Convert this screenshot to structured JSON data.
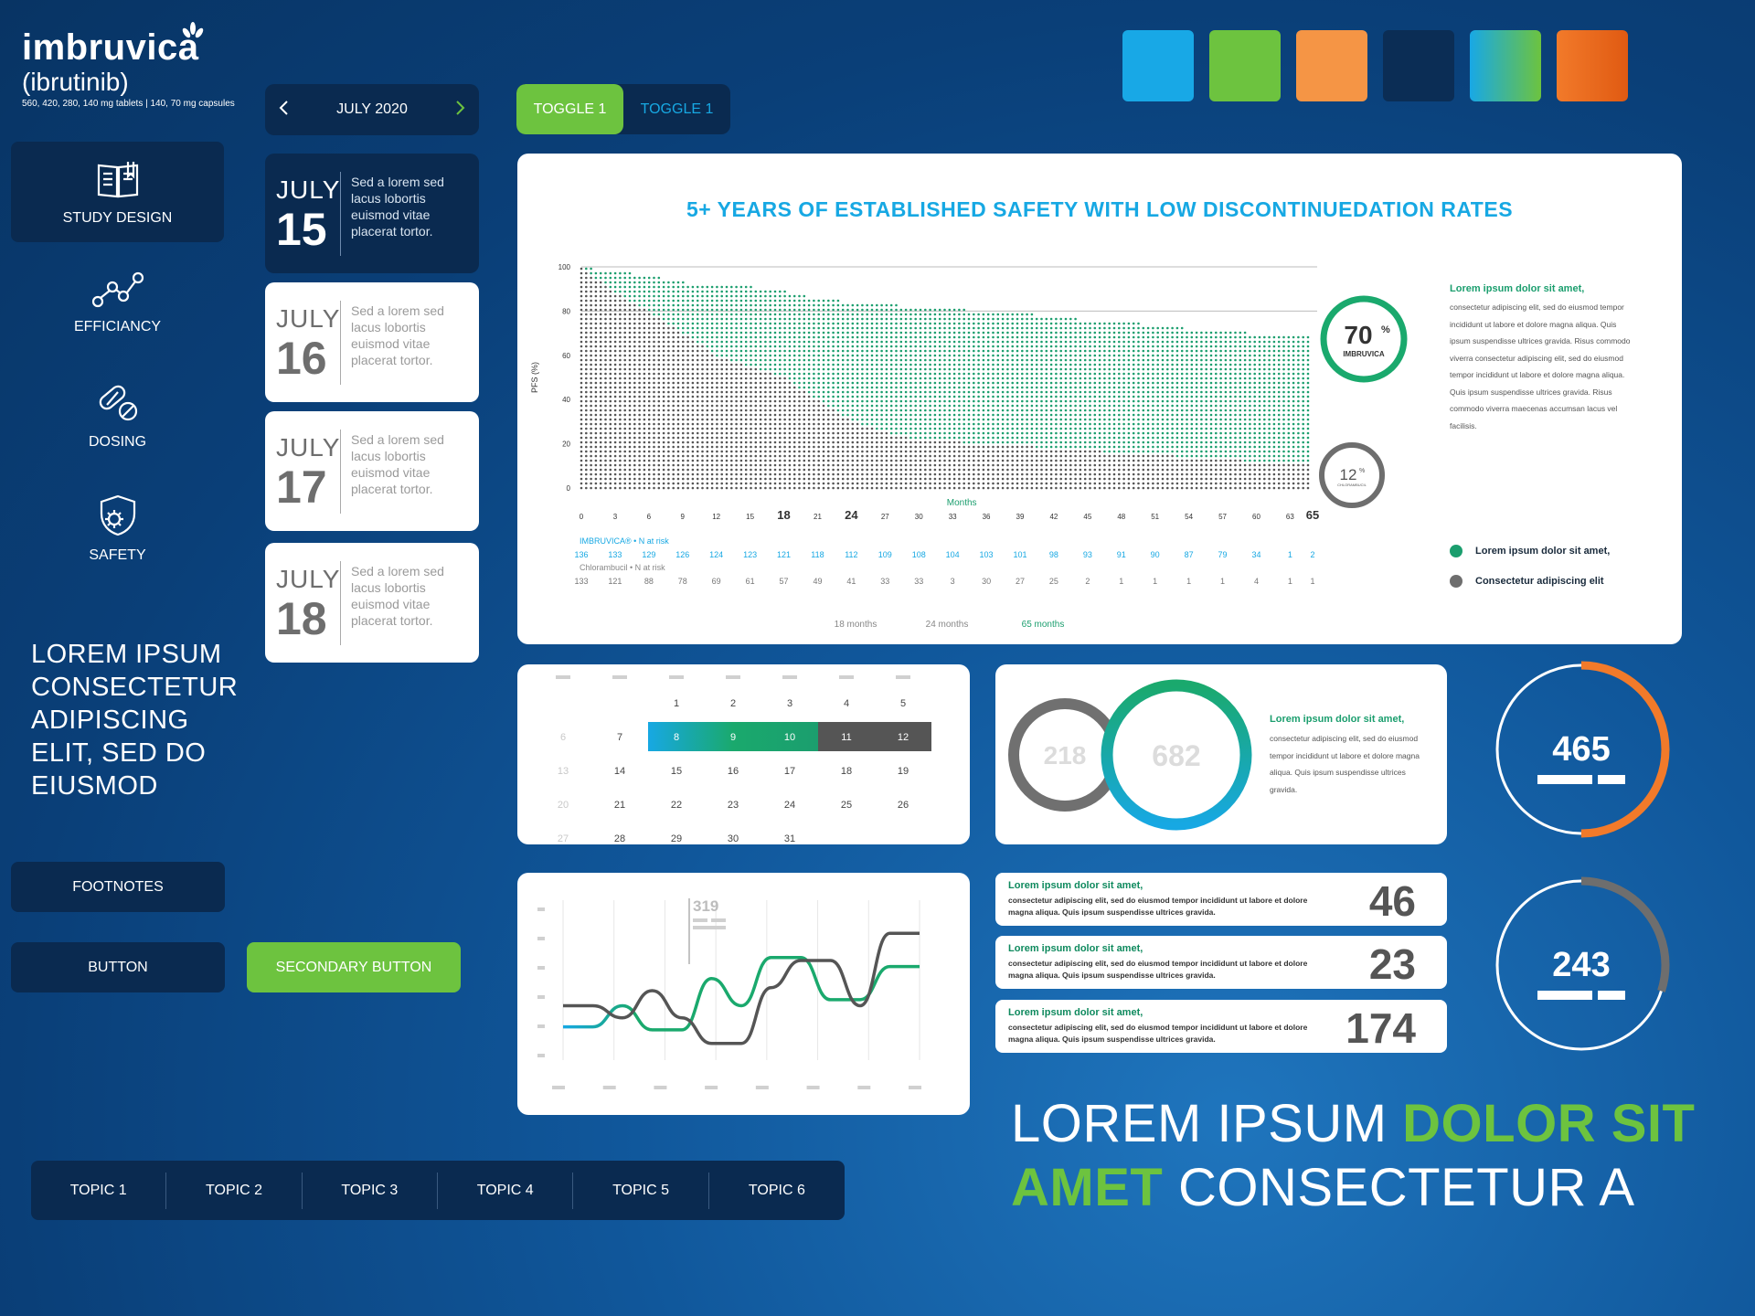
{
  "logo": {
    "name": "imbruvica",
    "generic": "(ibrutinib)",
    "fine_print": "560, 420, 280, 140 mg tablets | 140, 70 mg capsules"
  },
  "sidebar": {
    "items": [
      {
        "label": "STUDY DESIGN",
        "icon": "book-icon",
        "active": true
      },
      {
        "label": "EFFICIANCY",
        "icon": "line-chart-icon",
        "active": false
      },
      {
        "label": "DOSING",
        "icon": "pill-icon",
        "active": false
      },
      {
        "label": "SAFETY",
        "icon": "shield-icon",
        "active": false
      }
    ],
    "lorem": "LOREM IPSUM CONSECTETUR ADIPISCING ELIT, SED DO EIUSMOD"
  },
  "buttons": {
    "footnotes": "FOOTNOTES",
    "button": "BUTTON",
    "secondary": "SECONDARY  BUTTON"
  },
  "date_nav": {
    "label": "JULY 2020"
  },
  "day_cards": [
    {
      "month": "JULY",
      "day": "15",
      "text": "Sed a lorem sed lacus lobortis euismod vitae placerat tortor.",
      "active": true
    },
    {
      "month": "JULY",
      "day": "16",
      "text": "Sed a lorem sed lacus lobortis euismod vitae placerat tortor.",
      "active": false
    },
    {
      "month": "JULY",
      "day": "17",
      "text": "Sed a lorem sed lacus lobortis euismod vitae placerat tortor.",
      "active": false
    },
    {
      "month": "JULY",
      "day": "18",
      "text": "Sed a lorem sed lacus lobortis euismod vitae placerat tortor.",
      "active": false
    }
  ],
  "toggles": {
    "left": "TOGGLE 1",
    "right": "TOGGLE 1"
  },
  "colors": {
    "swatches": [
      "#18a8e6",
      "#6dc33f",
      "#f59545",
      "#0b2d55",
      "linear-gradient(90deg,#18a8e6,#6dc33f)",
      "linear-gradient(90deg,#f27a2a,#e05a12)"
    ],
    "green": "#6dc33f",
    "teal": "#1b9e6e",
    "blue": "#17a8e3",
    "navy": "#0a2a50",
    "orange": "#f27a2a",
    "gray": "#6e6e6e"
  },
  "main_chart": {
    "title": "5+ YEARS OF ESTABLISHED SAFETY WITH LOW DISCONTINUEDATION RATES",
    "ylabel": "PFS (%)",
    "xlabel": "Months",
    "badge_imbruvica": {
      "value": "70",
      "unit": "%",
      "label": "IMBRUVICA"
    },
    "badge_chlor": {
      "value": "12",
      "unit": "%",
      "label": "CHLORAMBUCIL"
    },
    "side_title": "Lorem ipsum dolor sit amet,",
    "side_text": "consectetur adipiscing elit, sed do eiusmod tempor incididunt ut labore et dolore magna aliqua. Quis ipsum suspendisse ultrices gravida. Risus commodo viverra consectetur adipiscing elit, sed do eiusmod tempor incididunt ut labore et dolore magna aliqua. Quis ipsum suspendisse ultrices gravida. Risus commodo viverra maecenas accumsan lacus vel facilisis.",
    "legend": [
      "Lorem ipsum dolor sit amet,",
      "Consectetur adipiscing elit"
    ],
    "risk_label_imbruvica": "IMBRUVICA® • N at risk",
    "risk_label_chlor": "Chlorambucil • N at risk",
    "risk_imbruvica": [
      "136",
      "133",
      "129",
      "126",
      "124",
      "123",
      "121",
      "118",
      "112",
      "109",
      "108",
      "104",
      "103",
      "101",
      "98",
      "93",
      "91",
      "90",
      "87",
      "79",
      "34",
      "1",
      "2"
    ],
    "risk_chlor": [
      "133",
      "121",
      "88",
      "78",
      "69",
      "61",
      "57",
      "49",
      "41",
      "33",
      "33",
      "3",
      "30",
      "27",
      "25",
      "2",
      "1",
      "1",
      "1",
      "1",
      "4",
      "1",
      "1"
    ],
    "bottom_labels": [
      "18 months",
      "24 months",
      "65 months"
    ]
  },
  "chart_data": [
    {
      "type": "scatter",
      "title": "5+ YEARS OF ESTABLISHED SAFETY WITH LOW DISCONTINUEDATION RATES",
      "xlabel": "Months",
      "ylabel": "PFS (%)",
      "x_ticks": [
        "0",
        "3",
        "6",
        "9",
        "12",
        "15",
        "18",
        "21",
        "24",
        "27",
        "30",
        "33",
        "36",
        "39",
        "42",
        "45",
        "48",
        "51",
        "54",
        "57",
        "60",
        "63",
        "65"
      ],
      "y_ticks": [
        "0",
        "20",
        "40",
        "60",
        "80",
        "100"
      ],
      "ylim": [
        0,
        100
      ],
      "series": [
        {
          "name": "IMBRUVICA",
          "x": [
            0,
            3,
            6,
            9,
            12,
            15,
            18,
            21,
            24,
            27,
            30,
            33,
            36,
            39,
            42,
            45,
            48,
            51,
            54,
            57,
            60,
            63,
            65
          ],
          "y": [
            100,
            98,
            96,
            93,
            92,
            91,
            89,
            86,
            84,
            83,
            82,
            81,
            80,
            79,
            78,
            76,
            75,
            74,
            72,
            71,
            70,
            70,
            70
          ]
        },
        {
          "name": "Chlorambucil",
          "x": [
            0,
            3,
            6,
            9,
            12,
            15,
            18,
            21,
            24,
            27,
            30,
            33,
            36,
            39,
            42,
            45,
            48,
            51,
            54,
            57,
            60,
            63,
            65
          ],
          "y": [
            100,
            88,
            80,
            70,
            60,
            55,
            50,
            40,
            30,
            25,
            22,
            21,
            20,
            19,
            18,
            17,
            16,
            15,
            14,
            13,
            12,
            12,
            12
          ]
        }
      ]
    },
    {
      "type": "line",
      "annotation": "319",
      "series": [
        {
          "name": "",
          "values": [
            16,
            16,
            30,
            14,
            14,
            48,
            30,
            62,
            62,
            34,
            34,
            56,
            56
          ]
        },
        {
          "name": "",
          "values": [
            30,
            30,
            22,
            40,
            22,
            5,
            5,
            42,
            60,
            60,
            30,
            78,
            78
          ]
        }
      ]
    }
  ],
  "calendar": {
    "headers": [
      "",
      "",
      "",
      "",
      "",
      "",
      ""
    ],
    "rows": [
      [
        "",
        "",
        "1",
        "2",
        "3",
        "4",
        "5"
      ],
      [
        "6",
        "7",
        "8",
        "9",
        "10",
        "11",
        "12"
      ],
      [
        "13",
        "14",
        "15",
        "16",
        "17",
        "18",
        "19"
      ],
      [
        "20",
        "21",
        "22",
        "23",
        "24",
        "25",
        "26"
      ],
      [
        "27",
        "28",
        "29",
        "30",
        "31",
        "",
        ""
      ]
    ]
  },
  "ring_card": {
    "gray_value": "218",
    "green_value": "682",
    "title": "Lorem ipsum dolor sit amet,",
    "text": "consectetur adipiscing elit, sed do eiusmod tempor incididunt ut labore et dolore magna aliqua. Quis ipsum suspendisse ultrices gravida."
  },
  "big_rings": [
    {
      "value": "465",
      "fraction": 0.5
    },
    {
      "value": "243",
      "fraction": 0.3
    }
  ],
  "stat_cards": [
    {
      "title": "Lorem ipsum dolor sit amet,",
      "text": "consectetur adipiscing elit, sed do eiusmod tempor incididunt ut labore et dolore magna aliqua. Quis ipsum suspendisse ultrices gravida.",
      "number": "46"
    },
    {
      "title": "Lorem ipsum dolor sit amet,",
      "text": "consectetur adipiscing elit, sed do eiusmod tempor incididunt ut labore et dolore magna aliqua. Quis ipsum suspendisse ultrices gravida.",
      "number": "23"
    },
    {
      "title": "Lorem ipsum dolor sit amet,",
      "text": "consectetur adipiscing elit, sed do eiusmod tempor incididunt ut labore et dolore magna aliqua. Quis ipsum suspendisse ultrices gravida.",
      "number": "174"
    }
  ],
  "topics": [
    "TOPIC 1",
    "TOPIC 2",
    "TOPIC 3",
    "TOPIC 4",
    "TOPIC 5",
    "TOPIC 6"
  ],
  "headline": {
    "a": "LOREM IPSUM ",
    "b": "DOLOR SIT",
    "c": "AMET",
    "d": " CONSECTETUR A"
  }
}
